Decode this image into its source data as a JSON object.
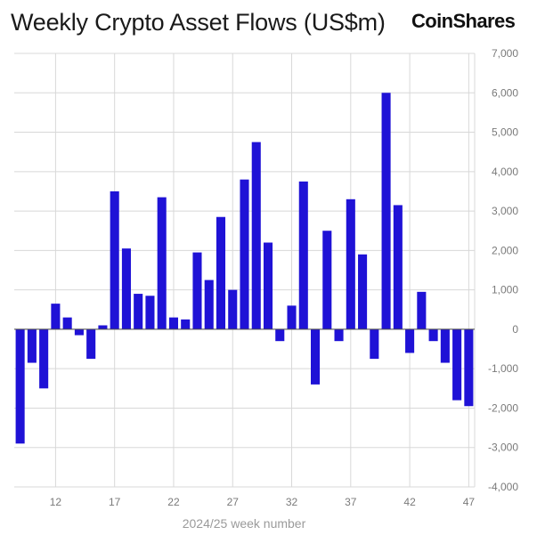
{
  "header": {
    "title": "Weekly Crypto Asset Flows (US$m)",
    "brand": "CoinShares"
  },
  "colors": {
    "bar": "#1f12d6",
    "grid": "#d8d8d8",
    "zero_line": "#4d4d4d"
  },
  "chart_data": {
    "type": "bar",
    "title": "Weekly Crypto Asset Flows (US$m)",
    "xlabel": "2024/25 week number",
    "ylabel": "",
    "ylim": [
      -4000,
      7000
    ],
    "yticks": [
      7000,
      6000,
      5000,
      4000,
      3000,
      2000,
      1000,
      0,
      -1000,
      -2000,
      -3000,
      -4000
    ],
    "ytick_labels": [
      "7,000",
      "6,000",
      "5,000",
      "4,000",
      "3,000",
      "2,000",
      "1,000",
      "0",
      "-1,000",
      "-2,000",
      "-3,000",
      "-4,000"
    ],
    "xtick_labels": [
      "12",
      "17",
      "22",
      "27",
      "32",
      "37",
      "42",
      "47"
    ],
    "grid": true,
    "categories": [
      9,
      10,
      11,
      12,
      13,
      14,
      15,
      16,
      17,
      18,
      19,
      20,
      21,
      22,
      23,
      24,
      25,
      26,
      27,
      28,
      29,
      30,
      31,
      32,
      33,
      34,
      35,
      36,
      37,
      38,
      39,
      40,
      41,
      42,
      43,
      44,
      45,
      46,
      47
    ],
    "values": [
      -2900,
      -850,
      -1500,
      650,
      300,
      -150,
      -750,
      100,
      3500,
      2050,
      900,
      850,
      3350,
      300,
      250,
      1950,
      1250,
      2850,
      1000,
      3800,
      4750,
      2200,
      -300,
      600,
      3750,
      -1400,
      2500,
      -300,
      3300,
      1900,
      -750,
      6000,
      3150,
      -600,
      950,
      -300,
      -850,
      -1800,
      -1950
    ]
  }
}
